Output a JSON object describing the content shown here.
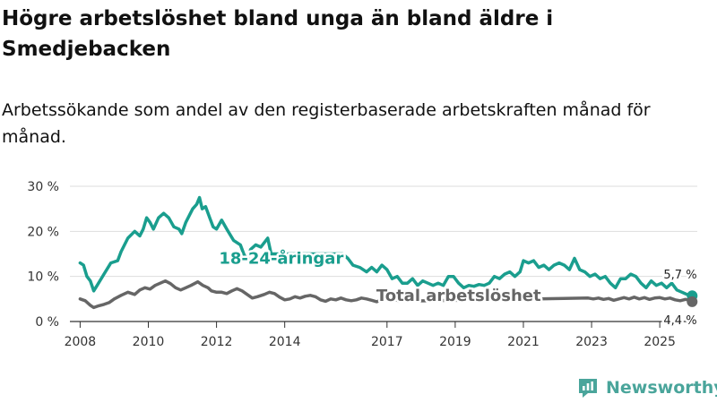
{
  "title": "Högre arbetslöshet bland unga än bland äldre i Smedjebacken",
  "subtitle": "Arbetssökande som andel av den registerbaserade arbetskraften månad för månad.",
  "brand": {
    "name": "Newsworthy",
    "logo_icon": "newsworthy-logo-icon"
  },
  "colors": {
    "youth": "#1a9e8e",
    "total": "#666666",
    "grid": "#dddddd",
    "axis": "#333333",
    "brand": "#4aa59b"
  },
  "chart_data": {
    "type": "line",
    "title": "Högre arbetslöshet bland unga än bland äldre i Smedjebacken",
    "xlabel": "",
    "ylabel": "",
    "xlim": [
      2007.7,
      2026.1
    ],
    "ylim": [
      0,
      30
    ],
    "grid": true,
    "y_ticks": [
      0,
      10,
      20,
      30
    ],
    "y_tick_labels": [
      "0 %",
      "10 %",
      "20 %",
      "30 %"
    ],
    "x_ticks": [
      2008,
      2010,
      2012,
      2014,
      2017,
      2019,
      2021,
      2023,
      2025
    ],
    "x_tick_labels": [
      "2008",
      "2010",
      "2012",
      "2014",
      "2017",
      "2019",
      "2021",
      "2023",
      "2025"
    ],
    "series": [
      {
        "name": "18-24-åringar",
        "label": "18-24-åringar",
        "color": "#1a9e8e",
        "end_label": "5,7 %",
        "points": [
          [
            2008.0,
            13.0
          ],
          [
            2008.1,
            12.5
          ],
          [
            2008.2,
            10.0
          ],
          [
            2008.3,
            9.0
          ],
          [
            2008.4,
            6.8
          ],
          [
            2008.5,
            8.0
          ],
          [
            2008.7,
            10.5
          ],
          [
            2008.9,
            13.0
          ],
          [
            2009.1,
            13.5
          ],
          [
            2009.2,
            15.5
          ],
          [
            2009.4,
            18.5
          ],
          [
            2009.6,
            20.0
          ],
          [
            2009.75,
            19.0
          ],
          [
            2009.85,
            20.5
          ],
          [
            2009.95,
            23.0
          ],
          [
            2010.05,
            22.0
          ],
          [
            2010.15,
            20.5
          ],
          [
            2010.3,
            23.0
          ],
          [
            2010.45,
            24.0
          ],
          [
            2010.6,
            23.0
          ],
          [
            2010.75,
            21.0
          ],
          [
            2010.9,
            20.5
          ],
          [
            2010.98,
            19.5
          ],
          [
            2011.1,
            22.0
          ],
          [
            2011.3,
            25.0
          ],
          [
            2011.42,
            26.0
          ],
          [
            2011.5,
            27.5
          ],
          [
            2011.58,
            25.0
          ],
          [
            2011.68,
            25.5
          ],
          [
            2011.8,
            23.0
          ],
          [
            2011.9,
            21.0
          ],
          [
            2012.0,
            20.5
          ],
          [
            2012.15,
            22.5
          ],
          [
            2012.3,
            20.5
          ],
          [
            2012.5,
            18.0
          ],
          [
            2012.6,
            17.5
          ],
          [
            2012.7,
            17.0
          ],
          [
            2012.8,
            15.0
          ],
          [
            2012.9,
            13.5
          ],
          [
            2013.0,
            16.0
          ],
          [
            2013.15,
            17.0
          ],
          [
            2013.3,
            16.5
          ],
          [
            2013.5,
            18.5
          ],
          [
            2013.6,
            15.0
          ],
          [
            2015.7,
            15.0
          ],
          [
            2015.85,
            14.0
          ],
          [
            2016.0,
            12.5
          ],
          [
            2016.2,
            12.0
          ],
          [
            2016.4,
            11.0
          ],
          [
            2016.55,
            12.0
          ],
          [
            2016.7,
            11.0
          ],
          [
            2016.85,
            12.5
          ],
          [
            2017.0,
            11.5
          ],
          [
            2017.15,
            9.5
          ],
          [
            2017.3,
            10.0
          ],
          [
            2017.45,
            8.5
          ],
          [
            2017.6,
            8.5
          ],
          [
            2017.75,
            9.5
          ],
          [
            2017.9,
            8.0
          ],
          [
            2018.05,
            9.0
          ],
          [
            2018.2,
            8.5
          ],
          [
            2018.35,
            8.0
          ],
          [
            2018.5,
            8.5
          ],
          [
            2018.65,
            8.0
          ],
          [
            2018.8,
            10.0
          ],
          [
            2018.95,
            10.0
          ],
          [
            2019.1,
            8.5
          ],
          [
            2019.25,
            7.5
          ],
          [
            2019.4,
            8.0
          ],
          [
            2019.55,
            7.8
          ],
          [
            2019.7,
            8.2
          ],
          [
            2019.85,
            8.0
          ],
          [
            2020.0,
            8.5
          ],
          [
            2020.15,
            10.0
          ],
          [
            2020.3,
            9.5
          ],
          [
            2020.45,
            10.5
          ],
          [
            2020.6,
            11.0
          ],
          [
            2020.75,
            10.0
          ],
          [
            2020.9,
            11.0
          ],
          [
            2021.0,
            13.5
          ],
          [
            2021.15,
            13.0
          ],
          [
            2021.3,
            13.5
          ],
          [
            2021.45,
            12.0
          ],
          [
            2021.6,
            12.5
          ],
          [
            2021.75,
            11.5
          ],
          [
            2021.9,
            12.5
          ],
          [
            2022.05,
            13.0
          ],
          [
            2022.2,
            12.5
          ],
          [
            2022.35,
            11.5
          ],
          [
            2022.5,
            14.0
          ],
          [
            2022.65,
            11.5
          ],
          [
            2022.8,
            11.0
          ],
          [
            2022.95,
            10.0
          ],
          [
            2023.1,
            10.5
          ],
          [
            2023.25,
            9.5
          ],
          [
            2023.4,
            10.0
          ],
          [
            2023.55,
            8.5
          ],
          [
            2023.7,
            7.5
          ],
          [
            2023.85,
            9.5
          ],
          [
            2024.0,
            9.5
          ],
          [
            2024.15,
            10.5
          ],
          [
            2024.3,
            10.0
          ],
          [
            2024.45,
            8.5
          ],
          [
            2024.6,
            7.5
          ],
          [
            2024.75,
            9.0
          ],
          [
            2024.9,
            8.0
          ],
          [
            2025.05,
            8.5
          ],
          [
            2025.2,
            7.5
          ],
          [
            2025.35,
            8.5
          ],
          [
            2025.5,
            7.0
          ],
          [
            2025.65,
            6.5
          ],
          [
            2025.8,
            6.0
          ],
          [
            2025.95,
            5.7
          ]
        ]
      },
      {
        "name": "Total arbetslöshet",
        "label": "Total arbetslöshet",
        "color": "#666666",
        "end_label": "4,4 %",
        "points": [
          [
            2008.0,
            5.0
          ],
          [
            2008.15,
            4.6
          ],
          [
            2008.3,
            3.6
          ],
          [
            2008.4,
            3.1
          ],
          [
            2008.55,
            3.5
          ],
          [
            2008.7,
            3.8
          ],
          [
            2008.85,
            4.2
          ],
          [
            2009.0,
            5.0
          ],
          [
            2009.2,
            5.8
          ],
          [
            2009.4,
            6.5
          ],
          [
            2009.6,
            6.0
          ],
          [
            2009.75,
            7.0
          ],
          [
            2009.9,
            7.5
          ],
          [
            2010.05,
            7.2
          ],
          [
            2010.2,
            8.0
          ],
          [
            2010.35,
            8.5
          ],
          [
            2010.5,
            9.0
          ],
          [
            2010.65,
            8.4
          ],
          [
            2010.8,
            7.5
          ],
          [
            2010.95,
            7.0
          ],
          [
            2011.1,
            7.5
          ],
          [
            2011.25,
            8.0
          ],
          [
            2011.45,
            8.8
          ],
          [
            2011.6,
            8.0
          ],
          [
            2011.75,
            7.5
          ],
          [
            2011.85,
            6.8
          ],
          [
            2012.0,
            6.5
          ],
          [
            2012.15,
            6.5
          ],
          [
            2012.3,
            6.2
          ],
          [
            2012.45,
            6.8
          ],
          [
            2012.6,
            7.3
          ],
          [
            2012.75,
            6.8
          ],
          [
            2012.9,
            6.0
          ],
          [
            2013.05,
            5.2
          ],
          [
            2013.2,
            5.5
          ],
          [
            2013.4,
            6.0
          ],
          [
            2013.55,
            6.5
          ],
          [
            2013.7,
            6.2
          ],
          [
            2013.85,
            5.4
          ],
          [
            2014.0,
            4.8
          ],
          [
            2014.15,
            5.0
          ],
          [
            2014.3,
            5.5
          ],
          [
            2014.45,
            5.2
          ],
          [
            2014.6,
            5.6
          ],
          [
            2014.75,
            5.8
          ],
          [
            2014.9,
            5.5
          ],
          [
            2015.05,
            4.8
          ],
          [
            2015.2,
            4.5
          ],
          [
            2015.35,
            5.0
          ],
          [
            2015.5,
            4.8
          ],
          [
            2015.65,
            5.2
          ],
          [
            2015.8,
            4.8
          ],
          [
            2015.95,
            4.6
          ],
          [
            2016.1,
            4.8
          ],
          [
            2016.25,
            5.2
          ],
          [
            2016.4,
            5.0
          ],
          [
            2016.55,
            4.7
          ],
          [
            2016.7,
            4.4
          ],
          [
            2016.85,
            4.8
          ],
          [
            2017.0,
            5.0
          ],
          [
            2017.15,
            4.6
          ],
          [
            2017.3,
            4.8
          ],
          [
            2017.35,
            4.5
          ],
          [
            2022.9,
            5.2
          ],
          [
            2023.05,
            5.0
          ],
          [
            2023.2,
            5.2
          ],
          [
            2023.35,
            4.9
          ],
          [
            2023.5,
            5.1
          ],
          [
            2023.65,
            4.7
          ],
          [
            2023.8,
            5.0
          ],
          [
            2023.95,
            5.3
          ],
          [
            2024.1,
            5.0
          ],
          [
            2024.25,
            5.4
          ],
          [
            2024.4,
            5.0
          ],
          [
            2024.55,
            5.3
          ],
          [
            2024.7,
            4.9
          ],
          [
            2024.85,
            5.2
          ],
          [
            2025.0,
            5.3
          ],
          [
            2025.15,
            5.0
          ],
          [
            2025.3,
            5.2
          ],
          [
            2025.45,
            4.8
          ],
          [
            2025.6,
            4.6
          ],
          [
            2025.75,
            4.9
          ],
          [
            2025.9,
            4.7
          ],
          [
            2025.95,
            4.4
          ]
        ]
      }
    ]
  }
}
